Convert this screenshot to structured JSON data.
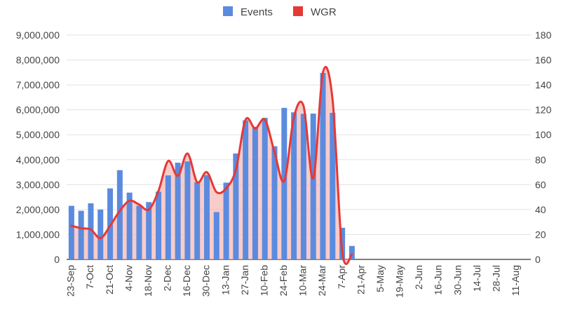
{
  "chart_data": {
    "type": "bar",
    "title": "",
    "xlabel": "",
    "ylabel_left": "",
    "ylabel_right": "",
    "legend": {
      "position": "top",
      "entries": [
        {
          "label": "Events",
          "color": "#5b8bdf",
          "shape": "square"
        },
        {
          "label": "WGR",
          "color": "#e53935",
          "shape": "square"
        }
      ]
    },
    "grid": true,
    "y_left": {
      "min": 0,
      "max": 9000000,
      "ticks": [
        0,
        1000000,
        2000000,
        3000000,
        4000000,
        5000000,
        6000000,
        7000000,
        8000000,
        9000000
      ],
      "tick_labels": [
        "0",
        "1,000,000",
        "2,000,000",
        "3,000,000",
        "4,000,000",
        "5,000,000",
        "6,000,000",
        "7,000,000",
        "8,000,000",
        "9,000,000"
      ]
    },
    "y_right": {
      "min": 0,
      "max": 180,
      "ticks": [
        0,
        20,
        40,
        60,
        80,
        100,
        120,
        140,
        160,
        180
      ],
      "tick_labels": [
        "0",
        "20",
        "40",
        "60",
        "80",
        "100",
        "120",
        "140",
        "160",
        "180"
      ]
    },
    "x_tick_labels": [
      "23-Sep",
      "7-Oct",
      "21-Oct",
      "4-Nov",
      "18-Nov",
      "2-Dec",
      "16-Dec",
      "30-Dec",
      "13-Jan",
      "27-Jan",
      "10-Feb",
      "24-Feb",
      "10-Mar",
      "24-Mar",
      "7-Apr",
      "21-Apr",
      "5-May",
      "19-May",
      "2-Jun",
      "16-Jun",
      "30-Jun",
      "14-Jul",
      "28-Jul",
      "11-Aug"
    ],
    "categories": [
      "23-Sep",
      "30-Sep",
      "7-Oct",
      "14-Oct",
      "21-Oct",
      "28-Oct",
      "4-Nov",
      "11-Nov",
      "18-Nov",
      "25-Nov",
      "2-Dec",
      "9-Dec",
      "16-Dec",
      "23-Dec",
      "30-Dec",
      "6-Jan",
      "13-Jan",
      "20-Jan",
      "27-Jan",
      "3-Feb",
      "10-Feb",
      "17-Feb",
      "24-Feb",
      "3-Mar",
      "10-Mar",
      "17-Mar",
      "24-Mar",
      "31-Mar",
      "7-Apr",
      "14-Apr",
      "21-Apr",
      "28-Apr",
      "5-May",
      "12-May",
      "19-May",
      "26-May",
      "2-Jun",
      "9-Jun",
      "16-Jun",
      "23-Jun",
      "30-Jun",
      "7-Jul",
      "14-Jul",
      "21-Jul",
      "28-Jul",
      "4-Aug",
      "11-Aug",
      "18-Aug"
    ],
    "series": [
      {
        "name": "Events",
        "type": "bar",
        "axis": "left",
        "color": "#5b8bdf",
        "values": [
          2150000,
          1950000,
          2250000,
          2000000,
          2850000,
          3580000,
          2680000,
          2150000,
          2300000,
          2720000,
          3370000,
          3880000,
          3930000,
          3100000,
          3380000,
          1900000,
          3080000,
          4250000,
          5580000,
          5320000,
          5680000,
          4540000,
          6080000,
          5900000,
          5840000,
          5850000,
          7480000,
          5880000,
          1270000,
          540000,
          null,
          null,
          null,
          null,
          null,
          null,
          null,
          null,
          null,
          null,
          null,
          null,
          null,
          null,
          null,
          null,
          null,
          null
        ]
      },
      {
        "name": "WGR",
        "type": "area-line",
        "axis": "right",
        "color": "#e53935",
        "fill": "#f4b6b3",
        "values": [
          27,
          25,
          24,
          17,
          27,
          39,
          47,
          44,
          40,
          55,
          79,
          67,
          85,
          62,
          70,
          54,
          57,
          72,
          112,
          105,
          112,
          86,
          63,
          114,
          123,
          65,
          150,
          128,
          6,
          4,
          null,
          null,
          null,
          null,
          null,
          null,
          null,
          null,
          null,
          null,
          null,
          null,
          null,
          null,
          null,
          null,
          null,
          null
        ]
      }
    ]
  }
}
